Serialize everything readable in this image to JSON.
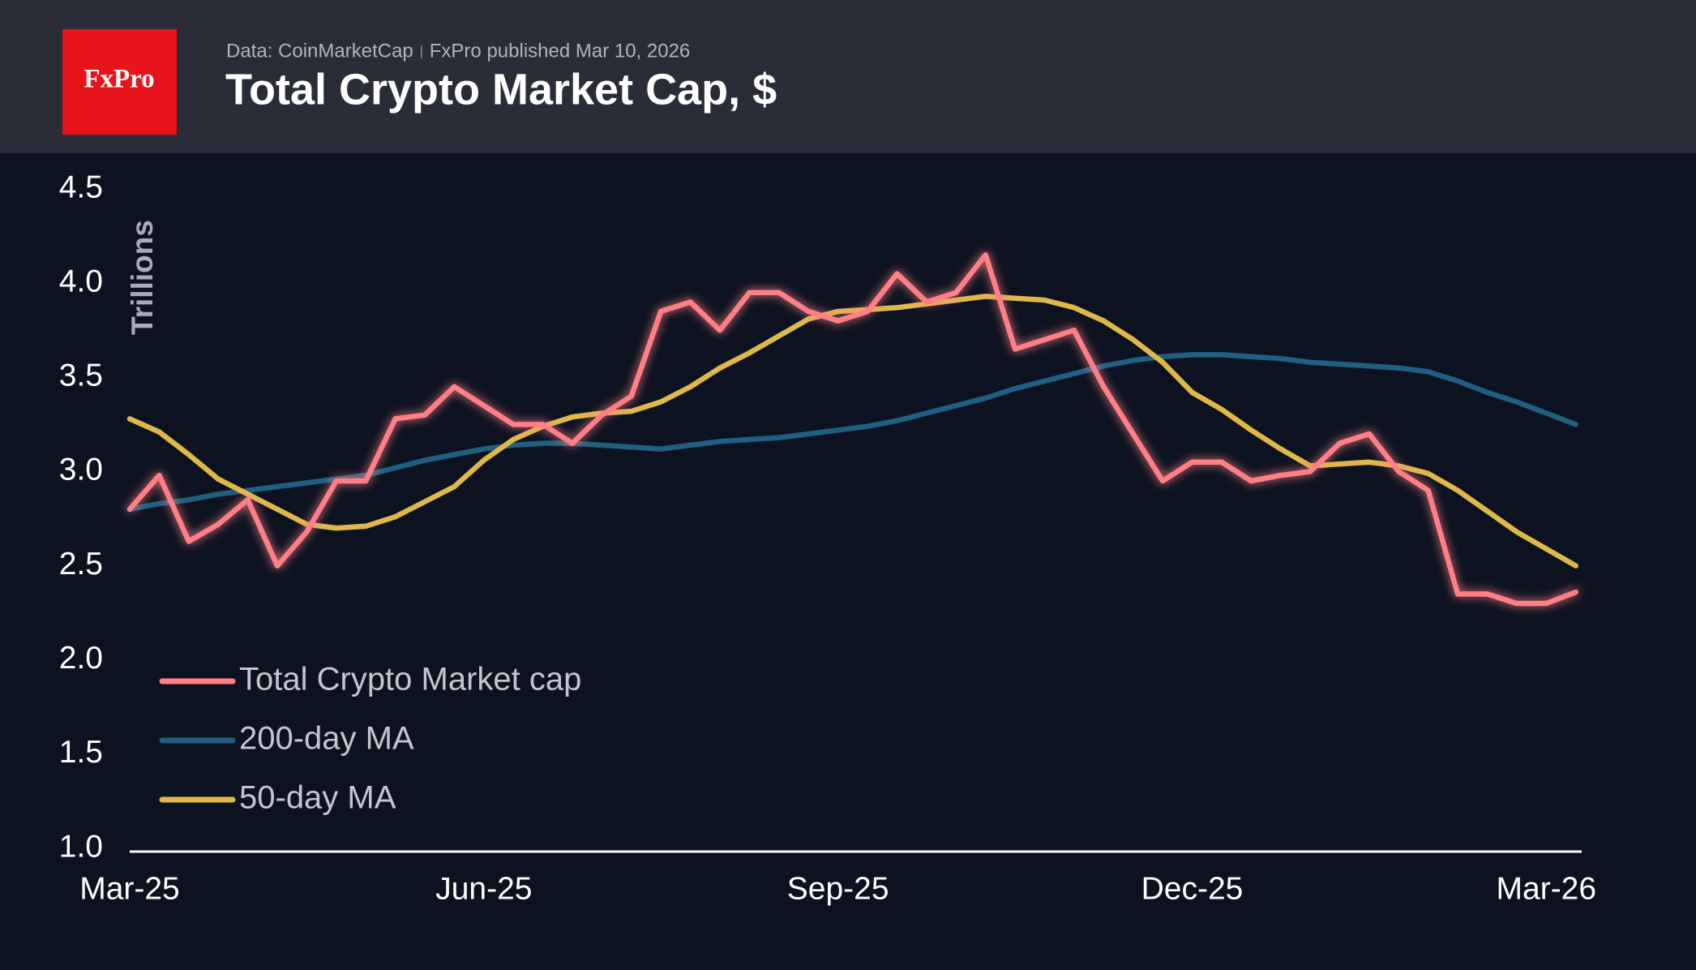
{
  "logo": "FxPro",
  "source": "Data: CoinMarketCap",
  "published": "FxPro published Mar 10, 2026",
  "chart_data": {
    "type": "line",
    "title": "Total Crypto Market Cap, $",
    "y_label": "Trillions",
    "x": [
      0,
      0.25,
      0.5,
      0.75,
      1,
      1.25,
      1.5,
      1.75,
      2,
      2.25,
      2.5,
      2.75,
      3,
      3.25,
      3.5,
      3.75,
      4,
      4.25,
      4.5,
      4.75,
      5,
      5.25,
      5.5,
      5.75,
      6,
      6.25,
      6.5,
      6.75,
      7,
      7.25,
      7.5,
      7.75,
      8,
      8.25,
      8.5,
      8.75,
      9,
      9.25,
      9.5,
      9.75,
      10,
      10.25,
      10.5,
      10.75,
      11,
      11.25,
      11.5,
      11.75,
      12,
      12.25
    ],
    "xlim": [
      0,
      12.3
    ],
    "xticks": [
      {
        "value": 0,
        "label": "Mar-25"
      },
      {
        "value": 3,
        "label": "Jun-25"
      },
      {
        "value": 6,
        "label": "Sep-25"
      },
      {
        "value": 9,
        "label": "Dec-25"
      },
      {
        "value": 12,
        "label": "Mar-26"
      }
    ],
    "ylim": [
      1,
      4.5
    ],
    "yticks": [
      {
        "value": 1,
        "label": "1.0"
      },
      1.5,
      {
        "value": 2,
        "label": "2.0"
      },
      2.5,
      {
        "value": 3,
        "label": "3.0"
      },
      3.5,
      {
        "value": 4,
        "label": "4.0"
      },
      4.5
    ],
    "legend": "lower left",
    "series": [
      {
        "name": "Total Crypto Market cap",
        "color": "#ff7f86",
        "glow": true,
        "values": [
          2.8,
          2.98,
          2.63,
          2.72,
          2.85,
          2.5,
          2.68,
          2.95,
          2.95,
          3.28,
          3.3,
          3.45,
          3.35,
          3.25,
          3.25,
          3.15,
          3.3,
          3.4,
          3.85,
          3.9,
          3.75,
          3.95,
          3.95,
          3.85,
          3.8,
          3.85,
          4.05,
          3.9,
          3.95,
          4.15,
          3.65,
          3.7,
          3.75,
          3.45,
          3.2,
          2.95,
          3.05,
          3.05,
          2.95,
          2.98,
          3.0,
          3.15,
          3.2,
          3.0,
          2.9,
          2.35,
          2.35,
          2.3,
          2.3,
          2.36
        ]
      },
      {
        "name": "200-day MA",
        "color": "#1f5f80",
        "values": [
          2.8,
          2.83,
          2.85,
          2.88,
          2.9,
          2.92,
          2.94,
          2.96,
          2.98,
          3.02,
          3.06,
          3.09,
          3.12,
          3.14,
          3.15,
          3.15,
          3.14,
          3.13,
          3.12,
          3.14,
          3.16,
          3.17,
          3.18,
          3.2,
          3.22,
          3.24,
          3.27,
          3.31,
          3.35,
          3.39,
          3.44,
          3.48,
          3.52,
          3.56,
          3.59,
          3.61,
          3.62,
          3.62,
          3.61,
          3.6,
          3.58,
          3.57,
          3.56,
          3.55,
          3.53,
          3.48,
          3.42,
          3.37,
          3.31,
          3.25
        ]
      },
      {
        "name": "50-day MA",
        "color": "#e0b84a",
        "values": [
          3.28,
          3.21,
          3.09,
          2.96,
          2.88,
          2.8,
          2.72,
          2.7,
          2.71,
          2.76,
          2.84,
          2.92,
          3.06,
          3.17,
          3.24,
          3.29,
          3.31,
          3.32,
          3.37,
          3.45,
          3.55,
          3.63,
          3.72,
          3.81,
          3.85,
          3.86,
          3.87,
          3.89,
          3.91,
          3.93,
          3.92,
          3.91,
          3.87,
          3.8,
          3.7,
          3.58,
          3.42,
          3.33,
          3.22,
          3.12,
          3.03,
          3.04,
          3.05,
          3.03,
          2.99,
          2.9,
          2.79,
          2.68,
          2.59,
          2.5
        ]
      }
    ]
  }
}
